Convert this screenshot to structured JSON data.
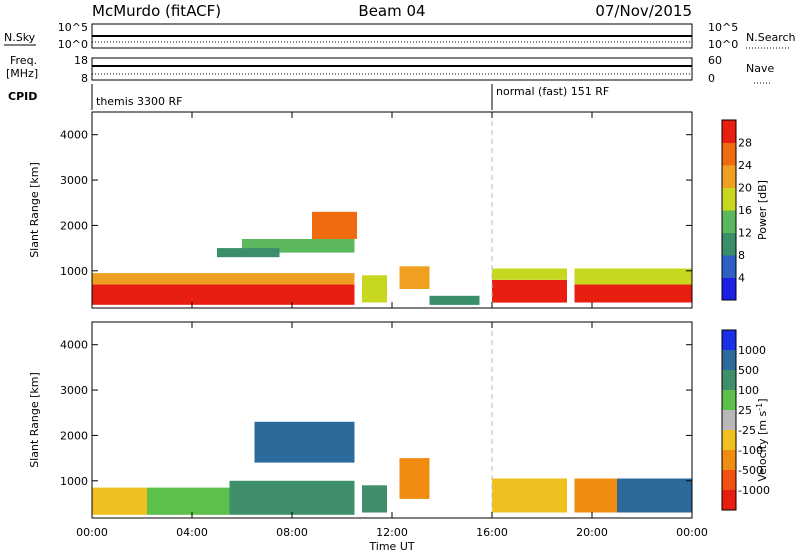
{
  "header": {
    "station": "McMurdo (fitACF)",
    "beam": "Beam 04",
    "date": "07/Nov/2015"
  },
  "status_panel": {
    "nsky_label": "N.Sky",
    "nsky_ticks": [
      "10^5",
      "10^0"
    ],
    "nsearch_label": "N.Search",
    "nsearch_ticks": [
      "10^5",
      "10^0"
    ],
    "freq_label": "Freq.",
    "freq_unit": "[MHz]",
    "freq_ticks": [
      "18",
      "8"
    ],
    "nave_label": "Nave",
    "nave_ticks": [
      "60",
      "0"
    ],
    "cpid_label": "CPID",
    "modes": [
      {
        "label": "themis 3300 RF",
        "start_hour": 0
      },
      {
        "label": "normal (fast) 151 RF",
        "start_hour": 16
      }
    ]
  },
  "chart_data": [
    {
      "type": "heatmap",
      "title": "",
      "xlabel": "Time UT",
      "ylabel": "Slant Range [km]",
      "xlim": [
        0,
        24
      ],
      "ylim": [
        180,
        4500
      ],
      "x_ticks": [
        "00:00",
        "04:00",
        "08:00",
        "12:00",
        "16:00",
        "20:00",
        "00:00"
      ],
      "y_ticks": [
        1000,
        2000,
        3000,
        4000
      ],
      "colorbar": {
        "label": "Power [dB]",
        "ticks": [
          "4",
          "8",
          "12",
          "16",
          "20",
          "24",
          "28"
        ],
        "colors": [
          "#1a20e6",
          "#2d5fc4",
          "#3a8f6a",
          "#5cb85c",
          "#c8d81e",
          "#f0a020",
          "#f06a10",
          "#e81e10"
        ]
      },
      "regions": [
        {
          "t0": 0,
          "t1": 10.5,
          "r0": 250,
          "r1": 700,
          "value": 28
        },
        {
          "t0": 0,
          "t1": 10.5,
          "r0": 700,
          "r1": 950,
          "value": 20
        },
        {
          "t0": 6,
          "t1": 10.5,
          "r0": 1400,
          "r1": 1700,
          "value": 12
        },
        {
          "t0": 8.8,
          "t1": 10.6,
          "r0": 1700,
          "r1": 2300,
          "value": 24
        },
        {
          "t0": 5,
          "t1": 7.5,
          "r0": 1300,
          "r1": 1500,
          "value": 8
        },
        {
          "t0": 10.8,
          "t1": 11.8,
          "r0": 300,
          "r1": 900,
          "value": 16
        },
        {
          "t0": 12.3,
          "t1": 13.5,
          "r0": 600,
          "r1": 1100,
          "value": 20
        },
        {
          "t0": 13.5,
          "t1": 15.5,
          "r0": 250,
          "r1": 450,
          "value": 8
        },
        {
          "t0": 16,
          "t1": 19,
          "r0": 300,
          "r1": 800,
          "value": 28
        },
        {
          "t0": 16,
          "t1": 19,
          "r0": 800,
          "r1": 1050,
          "value": 16
        },
        {
          "t0": 19.3,
          "t1": 24,
          "r0": 300,
          "r1": 700,
          "value": 28
        },
        {
          "t0": 19.3,
          "t1": 24,
          "r0": 700,
          "r1": 1050,
          "value": 16
        }
      ]
    },
    {
      "type": "heatmap",
      "title": "",
      "xlabel": "Time UT",
      "ylabel": "Slant Range [km]",
      "xlim": [
        0,
        24
      ],
      "ylim": [
        180,
        4500
      ],
      "x_ticks": [
        "00:00",
        "04:00",
        "08:00",
        "12:00",
        "16:00",
        "20:00",
        "00:00"
      ],
      "y_ticks": [
        1000,
        2000,
        3000,
        4000
      ],
      "colorbar": {
        "label": "Velocity [m s",
        "label_sup": "-1",
        "label_close": "]",
        "ticks": [
          "1000",
          "500",
          "100",
          "25",
          "-25",
          "-100",
          "-500",
          "-1000"
        ],
        "colors": [
          "#1a30e6",
          "#2d6a9c",
          "#3f8f6a",
          "#5cc04a",
          "#b8b8b8",
          "#f0c020",
          "#f08c10",
          "#f05010",
          "#e81e10"
        ]
      },
      "regions": [
        {
          "t0": 0,
          "t1": 2.2,
          "r0": 250,
          "r1": 850,
          "value": -100
        },
        {
          "t0": 2.2,
          "t1": 5.5,
          "r0": 250,
          "r1": 850,
          "value": 25
        },
        {
          "t0": 5.5,
          "t1": 10.5,
          "r0": 250,
          "r1": 1000,
          "value": 100
        },
        {
          "t0": 6.5,
          "t1": 10.5,
          "r0": 1400,
          "r1": 2300,
          "value": 500
        },
        {
          "t0": 10.8,
          "t1": 11.8,
          "r0": 300,
          "r1": 900,
          "value": 100
        },
        {
          "t0": 12.3,
          "t1": 13.5,
          "r0": 600,
          "r1": 1500,
          "value": -500
        },
        {
          "t0": 16,
          "t1": 19,
          "r0": 300,
          "r1": 1050,
          "value": -100
        },
        {
          "t0": 19.3,
          "t1": 21,
          "r0": 300,
          "r1": 1050,
          "value": -500
        },
        {
          "t0": 21,
          "t1": 24,
          "r0": 300,
          "r1": 1050,
          "value": 500
        }
      ]
    }
  ]
}
